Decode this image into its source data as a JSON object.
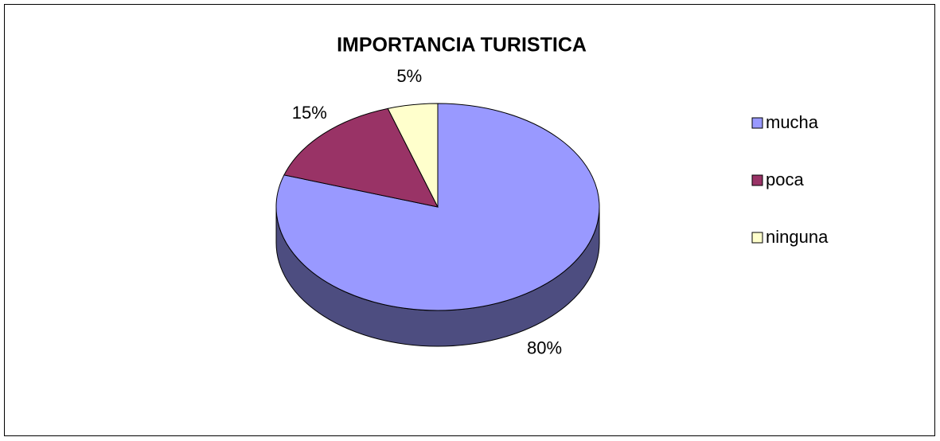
{
  "chart_data": {
    "type": "pie",
    "title": "IMPORTANCIA TURISTICA",
    "categories": [
      "mucha",
      "poca",
      "ninguna"
    ],
    "values": [
      80,
      15,
      5
    ],
    "value_labels": [
      "80%",
      "15%",
      "5%"
    ],
    "colors": [
      "#9999ff",
      "#993366",
      "#ffffcc"
    ],
    "legend": "right"
  }
}
